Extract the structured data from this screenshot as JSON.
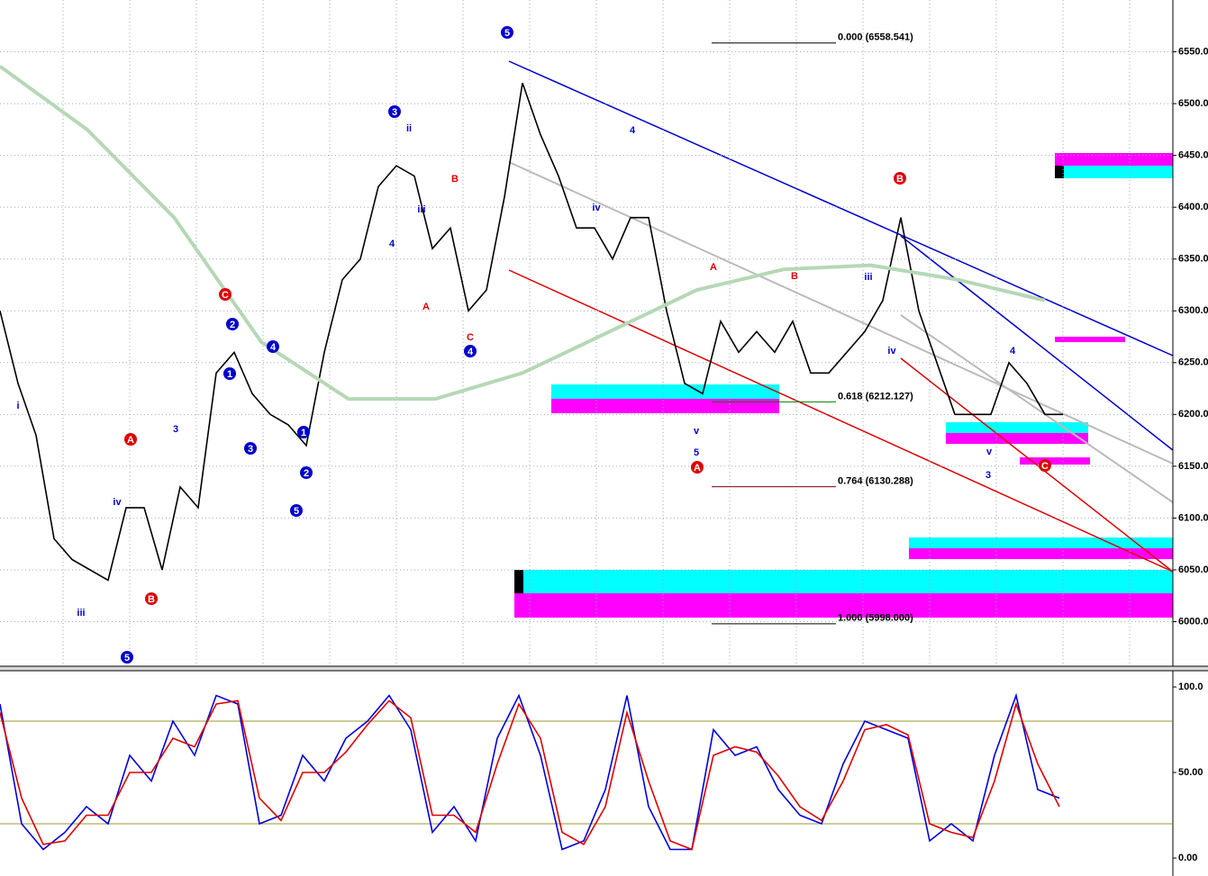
{
  "chart_data": [
    {
      "type": "line",
      "ylim": [
        5957,
        6600
      ],
      "yticks": [
        {
          "value": 6000,
          "label": "6000.0"
        },
        {
          "value": 6050,
          "label": "6050.0"
        },
        {
          "value": 6100,
          "label": "6100.0"
        },
        {
          "value": 6150,
          "label": "6150.0"
        },
        {
          "value": 6200,
          "label": "6200.0"
        },
        {
          "value": 6250,
          "label": "6250.0"
        },
        {
          "value": 6300,
          "label": "6300.0"
        },
        {
          "value": 6350,
          "label": "6350.0"
        },
        {
          "value": 6400,
          "label": "6400.0"
        },
        {
          "value": 6450,
          "label": "6450.0"
        },
        {
          "value": 6500,
          "label": "6500.0"
        },
        {
          "value": 6550,
          "label": "6550.0"
        }
      ],
      "grid": true,
      "series": [
        {
          "color": "#000000",
          "values": [
            6300,
            6230,
            6180,
            6080,
            6060,
            6050,
            6040,
            6110,
            6110,
            6050,
            6130,
            6110,
            6240,
            6260,
            6220,
            6200,
            6190,
            6170,
            6260,
            6330,
            6350,
            6420,
            6440,
            6430,
            6360,
            6380,
            6300,
            6320,
            6410,
            6520,
            6470,
            6430,
            6380,
            6380,
            6350,
            6390,
            6390,
            6300,
            6230,
            6220,
            6290,
            6260,
            6280,
            6260,
            6290,
            6240,
            6240,
            6260,
            6280,
            6310,
            6390,
            6300,
            6250,
            6200,
            6200,
            6200,
            6250,
            6230,
            6200,
            6200
          ]
        },
        {
          "color": "#b5d8b5",
          "values": [
            6536,
            6475,
            6390,
            6270,
            6215,
            6215,
            6240,
            6280,
            6320,
            6340,
            6344,
            6330,
            6310
          ]
        }
      ],
      "fib_levels": [
        {
          "value": 6558.541,
          "label": "0.000 (6558.541)",
          "color": "#000000"
        },
        {
          "value": 6212.127,
          "label": "0.618 (6212.127)",
          "color": "#008000"
        },
        {
          "value": 6130.288,
          "label": "0.764 (6130.288)",
          "color": "#800000"
        },
        {
          "value": 5998.0,
          "label": "1.000 (5998.000)",
          "color": "#000000"
        }
      ],
      "wave_labels": [
        {
          "text": "5",
          "color": "#0000cc",
          "circled": true
        },
        {
          "text": "3",
          "color": "#0000cc",
          "circled": true
        },
        {
          "text": "4",
          "color": "#0000cc",
          "circled": true
        },
        {
          "text": "5",
          "color": "#0000cc",
          "circled": true
        },
        {
          "text": "5",
          "color": "#0000cc",
          "circled": true
        },
        {
          "text": "1",
          "color": "#0000cc",
          "circled": true
        },
        {
          "text": "2",
          "color": "#0000cc",
          "circled": true
        },
        {
          "text": "3",
          "color": "#0000cc",
          "circled": true
        },
        {
          "text": "4",
          "color": "#0000cc",
          "circled": true
        },
        {
          "text": "1",
          "color": "#0000cc",
          "circled": true
        },
        {
          "text": "2",
          "color": "#0000cc",
          "circled": true
        },
        {
          "text": "C",
          "color": "#dd0000",
          "circled": true
        },
        {
          "text": "A",
          "color": "#dd0000",
          "circled": true
        },
        {
          "text": "B",
          "color": "#dd0000",
          "circled": true
        },
        {
          "text": "B",
          "color": "#dd0000",
          "circled": true
        },
        {
          "text": "A",
          "color": "#dd0000",
          "circled": true
        },
        {
          "text": "C",
          "color": "#dd0000",
          "circled": true
        },
        {
          "text": "iii",
          "color": "#0000cc",
          "circled": false
        },
        {
          "text": "iv",
          "color": "#0000cc",
          "circled": false
        },
        {
          "text": "3",
          "color": "#0000cc",
          "circled": false
        },
        {
          "text": "ii",
          "color": "#0000cc",
          "circled": false
        },
        {
          "text": "i",
          "color": "#0000cc",
          "circled": false
        },
        {
          "text": "iii",
          "color": "#0000cc",
          "circled": false
        },
        {
          "text": "iv",
          "color": "#0000cc",
          "circled": false
        },
        {
          "text": "4",
          "color": "#0000cc",
          "circled": false
        },
        {
          "text": "B",
          "color": "#dd0000",
          "circled": false
        },
        {
          "text": "A",
          "color": "#dd0000",
          "circled": false
        },
        {
          "text": "C",
          "color": "#dd0000",
          "circled": false
        },
        {
          "text": "4",
          "color": "#0000cc",
          "circled": false
        },
        {
          "text": "iii",
          "color": "#0000cc",
          "circled": false
        },
        {
          "text": "5",
          "color": "#0000cc",
          "circled": false
        },
        {
          "text": "v",
          "color": "#0000cc",
          "circled": false
        },
        {
          "text": "A",
          "color": "#dd0000",
          "circled": false
        },
        {
          "text": "B",
          "color": "#dd0000",
          "circled": false
        },
        {
          "text": "iv",
          "color": "#0000cc",
          "circled": false
        },
        {
          "text": "3",
          "color": "#0000cc",
          "circled": false
        },
        {
          "text": "4",
          "color": "#0000cc",
          "circled": false
        },
        {
          "text": "v",
          "color": "#0000cc",
          "circled": false
        }
      ]
    },
    {
      "type": "line",
      "ylim": [
        -10.5,
        109.5
      ],
      "yticks": [
        {
          "value": 0,
          "label": "0.00"
        },
        {
          "value": 50,
          "label": "50.00"
        },
        {
          "value": 100,
          "label": "100.0"
        }
      ],
      "levels": [
        20,
        80
      ],
      "series": [
        {
          "color": "#0000dd",
          "values": [
            90,
            20,
            5,
            15,
            30,
            20,
            60,
            45,
            80,
            60,
            95,
            90,
            20,
            25,
            60,
            45,
            70,
            80,
            95,
            75,
            15,
            30,
            10,
            70,
            95,
            60,
            5,
            10,
            40,
            95,
            30,
            5,
            5,
            75,
            60,
            65,
            40,
            25,
            20,
            55,
            80,
            75,
            70,
            10,
            20,
            10,
            60,
            95,
            40,
            35
          ]
        },
        {
          "color": "#dd0000",
          "values": [
            85,
            35,
            8,
            10,
            25,
            25,
            50,
            50,
            70,
            65,
            90,
            92,
            35,
            22,
            50,
            50,
            62,
            78,
            92,
            82,
            25,
            25,
            15,
            55,
            90,
            70,
            15,
            8,
            30,
            85,
            45,
            10,
            5,
            60,
            65,
            62,
            48,
            30,
            22,
            45,
            75,
            78,
            72,
            20,
            15,
            12,
            45,
            90,
            55,
            30
          ]
        }
      ]
    }
  ]
}
